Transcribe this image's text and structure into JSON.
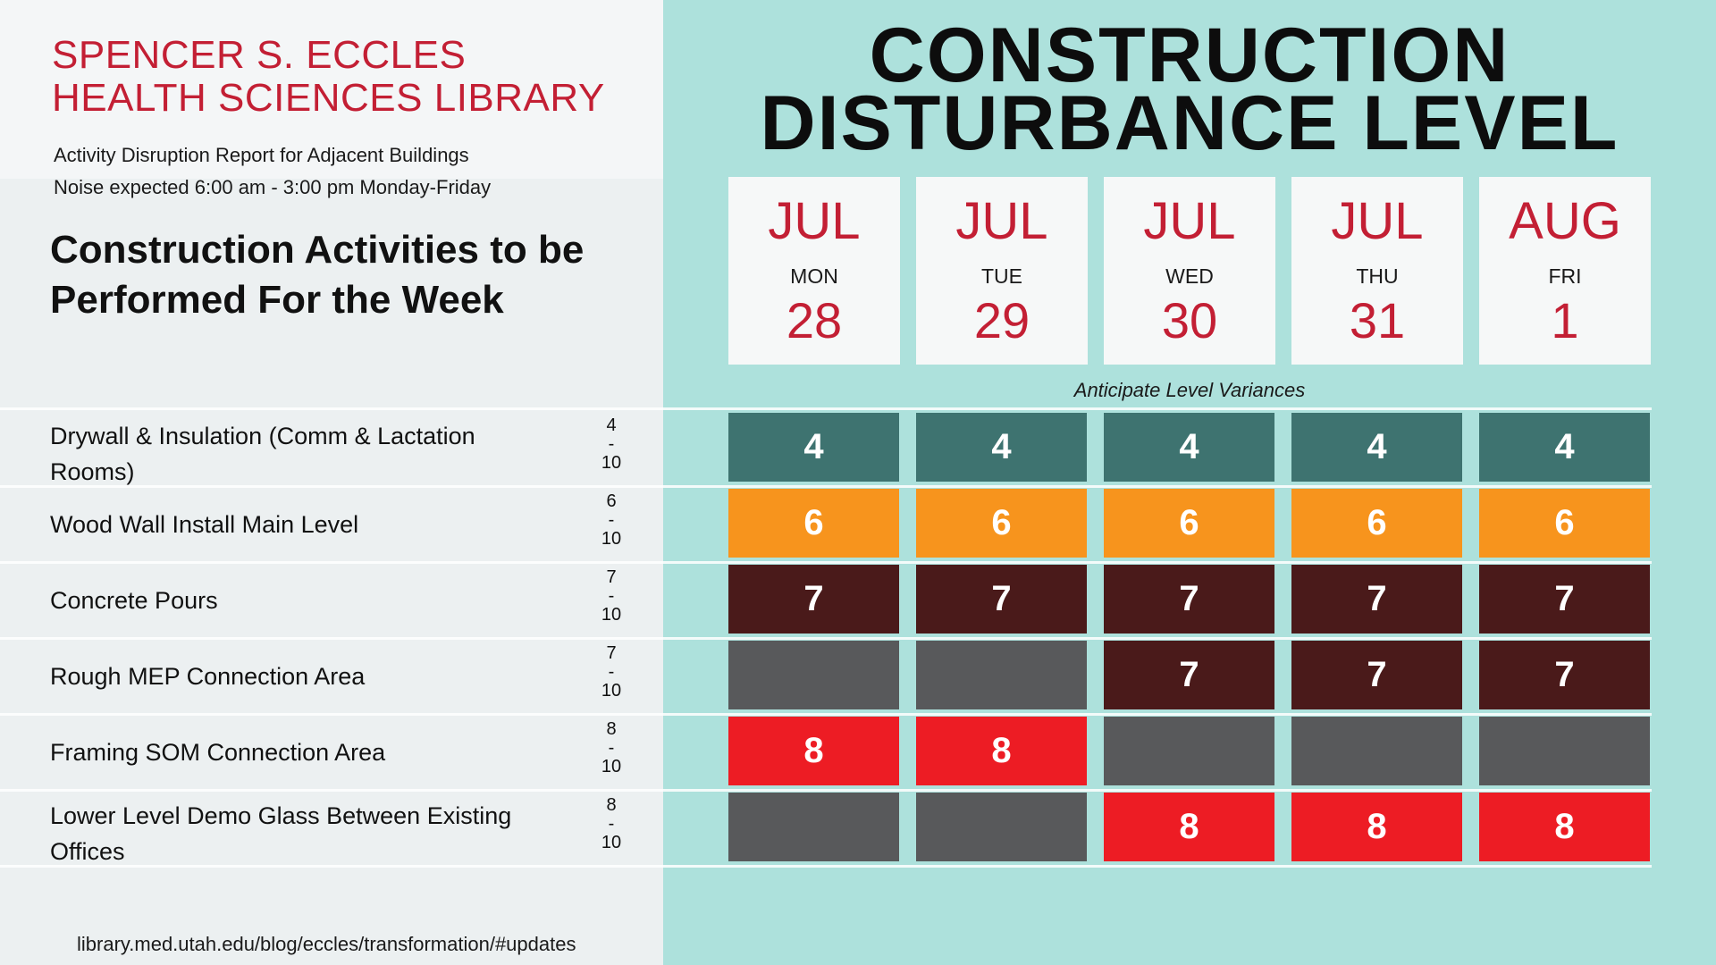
{
  "header": {
    "library_line1": "SPENCER S. ECCLES",
    "library_line2": "HEALTH SCIENCES LIBRARY",
    "subtitle1": "Activity Disruption Report for Adjacent Buildings",
    "subtitle2": "Noise expected 6:00 am - 3:00 pm Monday-Friday",
    "activities_heading": "Construction Activities to be Performed For the Week"
  },
  "title": {
    "line1": "CONSTRUCTION",
    "line2": "DISTURBANCE LEVEL"
  },
  "days": [
    {
      "month": "JUL",
      "dow": "MON",
      "day": "28"
    },
    {
      "month": "JUL",
      "dow": "TUE",
      "day": "29"
    },
    {
      "month": "JUL",
      "dow": "WED",
      "day": "30"
    },
    {
      "month": "JUL",
      "dow": "THU",
      "day": "31"
    },
    {
      "month": "AUG",
      "dow": "FRI",
      "day": "1"
    }
  ],
  "variances_note": "Anticipate Level Variances",
  "activities": [
    {
      "label": "Drywall & Insulation (Comm & Lactation Rooms)",
      "range_low": "4",
      "range_dash": "-",
      "range_high": "10",
      "levels": [
        "4",
        "4",
        "4",
        "4",
        "4"
      ]
    },
    {
      "label": "Wood Wall Install Main Level",
      "range_low": "6",
      "range_dash": "-",
      "range_high": "10",
      "levels": [
        "6",
        "6",
        "6",
        "6",
        "6"
      ]
    },
    {
      "label": "Concrete Pours",
      "range_low": "7",
      "range_dash": "-",
      "range_high": "10",
      "levels": [
        "7",
        "7",
        "7",
        "7",
        "7"
      ]
    },
    {
      "label": "Rough MEP Connection Area",
      "range_low": "7",
      "range_dash": "-",
      "range_high": "10",
      "levels": [
        "",
        "",
        "7",
        "7",
        "7"
      ]
    },
    {
      "label": "Framing SOM Connection Area",
      "range_low": "8",
      "range_dash": "-",
      "range_high": "10",
      "levels": [
        "8",
        "8",
        "",
        "",
        ""
      ]
    },
    {
      "label": "Lower Level Demo Glass Between Existing Offices",
      "range_low": "8",
      "range_dash": "-",
      "range_high": "10",
      "levels": [
        "",
        "",
        "8",
        "8",
        "8"
      ]
    }
  ],
  "level_colors": {
    "4": "#3e7370",
    "6": "#f7941d",
    "7": "#4a1a1a",
    "8": "#ed1c24",
    "none": "#58595b"
  },
  "footer": {
    "url": "library.med.utah.edu/blog/eccles/transformation/#updates"
  }
}
